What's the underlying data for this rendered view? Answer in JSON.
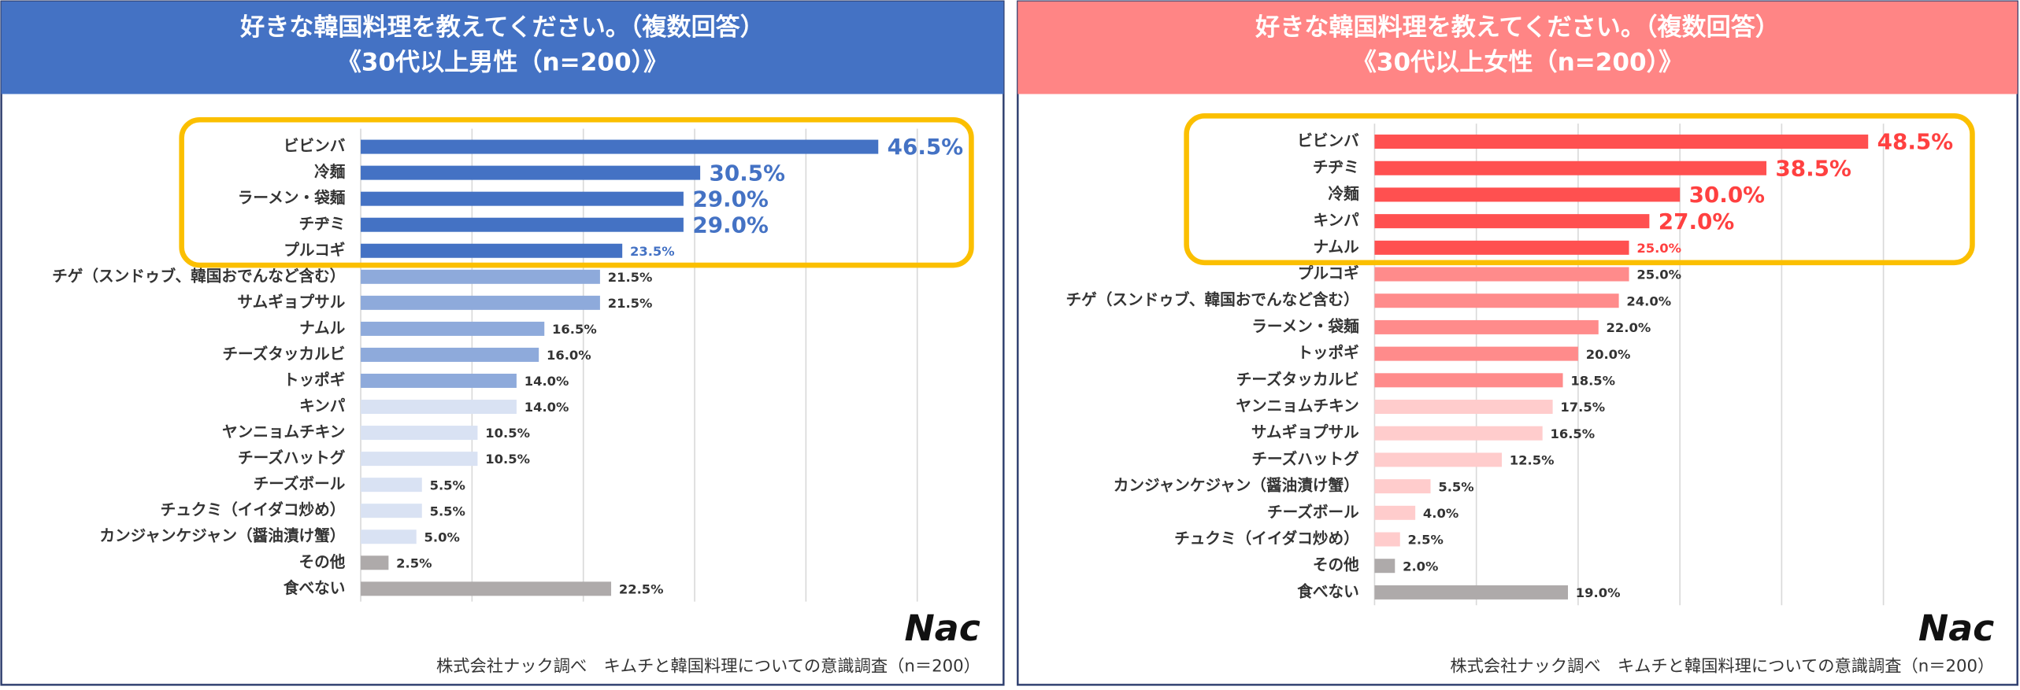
{
  "chart_data": [
    {
      "type": "bar",
      "orientation": "horizontal",
      "title": "好きな韓国料理を教えてください。（複数回答）",
      "subtitle": "《30代以上男性（n=200）》",
      "header_color": "#4472c4",
      "categories": [
        "ビビンバ",
        "冷麺",
        "ラーメン・袋麺",
        "チヂミ",
        "プルコギ",
        "チゲ（スンドゥブ、韓国おでんなど含む）",
        "サムギョプサル",
        "ナムル",
        "チーズタッカルビ",
        "トッポギ",
        "キンパ",
        "ヤンニョムチキン",
        "チーズハットグ",
        "チーズボール",
        "チュクミ（イイダコ炒め）",
        "カンジャンケジャン（醤油漬け蟹）",
        "その他",
        "食べない"
      ],
      "values": [
        46.5,
        30.5,
        29.0,
        29.0,
        23.5,
        21.5,
        21.5,
        16.5,
        16.0,
        14.0,
        14.0,
        10.5,
        10.5,
        5.5,
        5.5,
        5.0,
        2.5,
        22.5
      ],
      "value_labels": [
        "46.5%",
        "30.5%",
        "29.0%",
        "29.0%",
        "23.5%",
        "21.5%",
        "21.5%",
        "16.5%",
        "16.0%",
        "14.0%",
        "14.0%",
        "10.5%",
        "10.5%",
        "5.5%",
        "5.5%",
        "5.0%",
        "2.5%",
        "22.5%"
      ],
      "colors": [
        "#4472c4",
        "#4472c4",
        "#4472c4",
        "#4472c4",
        "#4472c4",
        "#8eaadb",
        "#8eaadb",
        "#8eaadb",
        "#8eaadb",
        "#8eaadb",
        "#d9e2f3",
        "#d9e2f3",
        "#d9e2f3",
        "#d9e2f3",
        "#d9e2f3",
        "#d9e2f3",
        "#aeaaaa",
        "#aeaaaa"
      ],
      "highlight_count": 5,
      "highlight_color": "#4472c4",
      "box_color": "#fbbf00",
      "xlim": [
        0,
        50
      ],
      "xticks": [
        0,
        10,
        20,
        30,
        40,
        50
      ],
      "grid": true,
      "logo": "Nac",
      "source": "株式会社ナック調べ　キムチと韓国料理についての意識調査（n＝200）"
    },
    {
      "type": "bar",
      "orientation": "horizontal",
      "title": "好きな韓国料理を教えてください。（複数回答）",
      "subtitle": "《30代以上女性（n=200）》",
      "header_color": "#ff8585",
      "categories": [
        "ビビンバ",
        "チヂミ",
        "冷麺",
        "キンパ",
        "ナムル",
        "プルコギ",
        "チゲ（スンドゥブ、韓国おでんなど含む）",
        "ラーメン・袋麺",
        "トッポギ",
        "チーズタッカルビ",
        "ヤンニョムチキン",
        "サムギョプサル",
        "チーズハットグ",
        "カンジャンケジャン（醤油漬け蟹）",
        "チーズボール",
        "チュクミ（イイダコ炒め）",
        "その他",
        "食べない"
      ],
      "values": [
        48.5,
        38.5,
        30.0,
        27.0,
        25.0,
        25.0,
        24.0,
        22.0,
        20.0,
        18.5,
        17.5,
        16.5,
        12.5,
        5.5,
        4.0,
        2.5,
        2.0,
        19.0
      ],
      "value_labels": [
        "48.5%",
        "38.5%",
        "30.0%",
        "27.0%",
        "25.0%",
        "25.0%",
        "24.0%",
        "22.0%",
        "20.0%",
        "18.5%",
        "17.5%",
        "16.5%",
        "12.5%",
        "5.5%",
        "4.0%",
        "2.5%",
        "2.0%",
        "19.0%"
      ],
      "colors": [
        "#ff5050",
        "#ff5050",
        "#ff5050",
        "#ff5050",
        "#ff5050",
        "#ff8b8b",
        "#ff8b8b",
        "#ff8b8b",
        "#ff8b8b",
        "#ff8b8b",
        "#ffcccc",
        "#ffcccc",
        "#ffcccc",
        "#ffcccc",
        "#ffcccc",
        "#ffcccc",
        "#aeaaaa",
        "#aeaaaa"
      ],
      "highlight_count": 5,
      "highlight_color": "#ff4040",
      "box_color": "#fbbf00",
      "xlim": [
        0,
        50
      ],
      "xticks": [
        0,
        10,
        20,
        30,
        40,
        50
      ],
      "grid": true,
      "logo": "Nac",
      "source": "株式会社ナック調べ　キムチと韓国料理についての意識調査（n＝200）"
    }
  ]
}
